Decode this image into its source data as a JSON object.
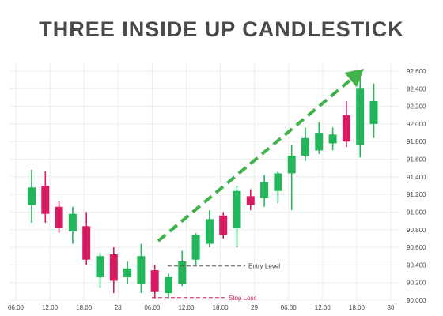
{
  "chart_data": {
    "type": "candlestick",
    "title": "THREE INSIDE UP CANDLESTICK",
    "x_tick_labels": [
      "06.00",
      "12.00",
      "18.00",
      "28",
      "06.00",
      "12.00",
      "18.00",
      "29",
      "06.00",
      "12.00",
      "18.00",
      "30"
    ],
    "y_tick_labels": [
      "90.000",
      "90.200",
      "90.400",
      "90.600",
      "90.800",
      "91.000",
      "91.200",
      "91.400",
      "91.600",
      "91.800",
      "92.000",
      "92.200",
      "92.400",
      "92.600"
    ],
    "ylim": [
      90.0,
      92.6
    ],
    "grid": true,
    "colors": {
      "bull": "#22b55a",
      "bear": "#d81b60",
      "arrow": "#3fb24a",
      "grid": "#ececec"
    },
    "candles": [
      {
        "open": 91.08,
        "high": 91.48,
        "low": 90.88,
        "close": 91.28
      },
      {
        "open": 91.3,
        "high": 91.46,
        "low": 90.88,
        "close": 90.98
      },
      {
        "open": 91.06,
        "high": 91.12,
        "low": 90.76,
        "close": 90.82
      },
      {
        "open": 90.78,
        "high": 91.06,
        "low": 90.64,
        "close": 90.98
      },
      {
        "open": 90.84,
        "high": 91.0,
        "low": 90.4,
        "close": 90.46
      },
      {
        "open": 90.26,
        "high": 90.54,
        "low": 90.14,
        "close": 90.5
      },
      {
        "open": 90.52,
        "high": 90.6,
        "low": 90.08,
        "close": 90.22
      },
      {
        "open": 90.26,
        "high": 90.44,
        "low": 90.18,
        "close": 90.36
      },
      {
        "open": 90.18,
        "high": 90.64,
        "low": 90.08,
        "close": 90.5
      },
      {
        "open": 90.34,
        "high": 90.4,
        "low": 90.02,
        "close": 90.1
      },
      {
        "open": 90.08,
        "high": 90.3,
        "low": 90.02,
        "close": 90.26
      },
      {
        "open": 90.18,
        "high": 90.56,
        "low": 90.16,
        "close": 90.44
      },
      {
        "open": 90.46,
        "high": 90.76,
        "low": 90.4,
        "close": 90.74
      },
      {
        "open": 90.64,
        "high": 91.02,
        "low": 90.6,
        "close": 90.92
      },
      {
        "open": 90.96,
        "high": 91.0,
        "low": 90.7,
        "close": 90.74
      },
      {
        "open": 90.82,
        "high": 91.3,
        "low": 90.6,
        "close": 91.24
      },
      {
        "open": 91.18,
        "high": 91.26,
        "low": 91.02,
        "close": 91.08
      },
      {
        "open": 91.16,
        "high": 91.42,
        "low": 91.06,
        "close": 91.34
      },
      {
        "open": 91.24,
        "high": 91.46,
        "low": 91.1,
        "close": 91.44
      },
      {
        "open": 91.44,
        "high": 91.76,
        "low": 91.02,
        "close": 91.64
      },
      {
        "open": 91.64,
        "high": 91.96,
        "low": 91.58,
        "close": 91.84
      },
      {
        "open": 91.7,
        "high": 92.02,
        "low": 91.66,
        "close": 91.9
      },
      {
        "open": 91.78,
        "high": 91.96,
        "low": 91.7,
        "close": 91.88
      },
      {
        "open": 92.1,
        "high": 92.26,
        "low": 91.74,
        "close": 91.8
      },
      {
        "open": 91.76,
        "high": 92.54,
        "low": 91.62,
        "close": 92.4
      },
      {
        "open": 92.0,
        "high": 92.46,
        "low": 91.84,
        "close": 92.26
      }
    ],
    "annotations": {
      "entry_level": {
        "label": "Entry Level",
        "value": 90.46,
        "color": "#555555"
      },
      "stop_loss": {
        "label": "Stop Loss",
        "value": 90.02,
        "color": "#d81b60"
      }
    }
  }
}
